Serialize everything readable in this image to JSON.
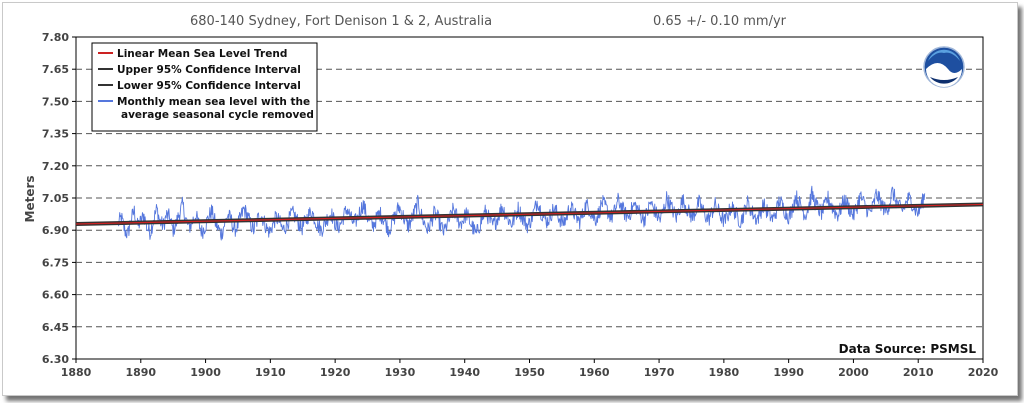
{
  "chart_data": {
    "type": "line",
    "title": "680-140 Sydney, Fort Denison 1 & 2, Australia",
    "trend_text": "0.65 +/-  0.10 mm/yr",
    "ylabel": "Meters",
    "xlabel": "",
    "xlim": [
      1880,
      2020
    ],
    "ylim": [
      6.3,
      7.8
    ],
    "x_ticks": [
      "1880",
      "1890",
      "1900",
      "1910",
      "1920",
      "1930",
      "1940",
      "1950",
      "1960",
      "1970",
      "1980",
      "1990",
      "2000",
      "2010",
      "2020"
    ],
    "y_ticks": [
      "7.80",
      "7.65",
      "7.50",
      "7.35",
      "7.20",
      "7.05",
      "6.90",
      "6.75",
      "6.60",
      "6.45",
      "6.30"
    ],
    "grid": "horizontal dashed",
    "legend_position": "top-left",
    "series": [
      {
        "name": "Linear Mean Sea Level Trend",
        "color": "#cc2222",
        "x": [
          1880,
          2020
        ],
        "y": [
          6.929,
          7.02
        ]
      },
      {
        "name": "Upper 95% Confidence Interval",
        "color": "#333333",
        "x": [
          1880,
          2020
        ],
        "y": [
          6.935,
          7.026
        ]
      },
      {
        "name": "Lower 95% Confidence Interval",
        "color": "#333333",
        "x": [
          1880,
          2020
        ],
        "y": [
          6.923,
          7.014
        ]
      },
      {
        "name": "Monthly mean sea level with the average seasonal cycle removed",
        "color": "#5577dd",
        "x_start": 1886.5,
        "x_end": 2011.0,
        "y": [
          6.93,
          6.96,
          6.9,
          6.88,
          6.95,
          6.99,
          6.92,
          6.94,
          6.97,
          6.91,
          6.89,
          6.95,
          7.0,
          6.94,
          6.92,
          6.97,
          6.96,
          6.9,
          6.93,
          6.98,
          7.02,
          6.95,
          6.91,
          6.94,
          6.97,
          6.93,
          6.89,
          6.92,
          6.96,
          6.99,
          6.94,
          6.91,
          6.88,
          6.93,
          6.97,
          6.95,
          6.9,
          6.92,
          6.96,
          7.0,
          6.97,
          6.93,
          6.9,
          6.94,
          6.98,
          6.95,
          6.91,
          6.89,
          6.93,
          6.96,
          6.94,
          6.9,
          6.92,
          6.95,
          6.98,
          6.96,
          6.93,
          6.91,
          6.94,
          6.97,
          6.99,
          6.95,
          6.92,
          6.9,
          6.93,
          6.96,
          6.98,
          6.94,
          6.91,
          6.93,
          6.97,
          7.0,
          6.96,
          6.93,
          6.95,
          6.99,
          7.02,
          6.97,
          6.94,
          6.92,
          6.95,
          6.98,
          6.96,
          6.93,
          6.9,
          6.94,
          6.97,
          7.01,
          6.98,
          6.94,
          6.92,
          6.95,
          6.99,
          7.03,
          6.97,
          6.93,
          6.9,
          6.94,
          6.98,
          6.96,
          6.92,
          6.89,
          6.93,
          6.96,
          7.0,
          6.96,
          6.93,
          6.95,
          6.98,
          6.94,
          6.91,
          6.88,
          6.92,
          6.96,
          6.99,
          6.95,
          6.92,
          6.94,
          6.97,
          7.01,
          6.98,
          6.95,
          6.93,
          6.96,
          7.0,
          6.97,
          6.94,
          6.92,
          6.95,
          6.99,
          7.04,
          6.99,
          6.96,
          6.94,
          6.97,
          7.0,
          6.98,
          6.95,
          6.93,
          6.96,
          7.01,
          6.99,
          6.96,
          6.94,
          6.97,
          7.02,
          7.0,
          6.97,
          6.95,
          6.98,
          7.03,
          7.01,
          6.98,
          6.96,
          6.99,
          7.04,
          7.01,
          6.98,
          6.96,
          6.99,
          7.02,
          7.0,
          6.97,
          6.95,
          6.98,
          7.03,
          7.0,
          6.97,
          6.95,
          6.99,
          7.05,
          7.02,
          6.99,
          6.96,
          7.0,
          7.04,
          7.01,
          6.98,
          6.96,
          6.99,
          7.03,
          7.0,
          6.97,
          6.95,
          6.98,
          7.02,
          6.99,
          6.96,
          6.94,
          6.97,
          7.01,
          6.99,
          6.96,
          6.94,
          6.98,
          7.03,
          7.0,
          6.97,
          6.95,
          6.98,
          7.02,
          6.99,
          6.97,
          6.95,
          6.99,
          7.04,
          7.01,
          6.98,
          6.96,
          7.0,
          7.06,
          7.03,
          7.0,
          6.97,
          7.01,
          7.07,
          7.03,
          7.0,
          6.98,
          7.01,
          7.05,
          7.02,
          6.99,
          6.97,
          7.0,
          7.04,
          7.02,
          6.99,
          6.97,
          7.01,
          7.06,
          7.03,
          7.0,
          6.98,
          7.01,
          7.07,
          7.04,
          7.01,
          6.99,
          7.02,
          7.08,
          7.04,
          7.01,
          6.99,
          7.02,
          7.05,
          7.03,
          7.0,
          6.98,
          7.02,
          7.06
        ]
      }
    ],
    "annotations": [
      "Data Source: PSMSL"
    ],
    "logo": "noaa-logo"
  }
}
